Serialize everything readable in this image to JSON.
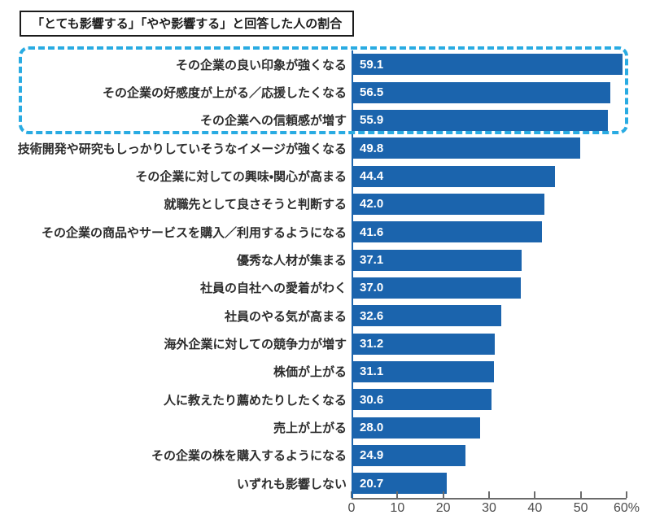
{
  "title_box": {
    "label": "「とても影響する」「やや影響する」と回答した人の割合"
  },
  "chart_data": {
    "type": "bar",
    "orientation": "horizontal",
    "title": "「とても影響する」「やや影響する」と回答した人の割合",
    "categories": [
      "その企業の良い印象が強くなる",
      "その企業の好感度が上がる／応援したくなる",
      "その企業への信頼感が増す",
      "技術開発や研究もしっかりしていそうなイメージが強くなる",
      "その企業に対しての興味・関心が高まる",
      "就職先として良さそうと判断する",
      "その企業の商品やサービスを購入／利用するようになる",
      "優秀な人材が集まる",
      "社員の自社への愛着がわく",
      "社員のやる気が高まる",
      "海外企業に対しての競争力が増す",
      "株価が上がる",
      "人に教えたり薦めたりしたくなる",
      "売上が上がる",
      "その企業の株を購入するようになる",
      "いずれも影響しない"
    ],
    "values": [
      59.1,
      56.5,
      55.9,
      49.8,
      44.4,
      42.0,
      41.6,
      37.1,
      37.0,
      32.6,
      31.2,
      31.1,
      30.6,
      28.0,
      24.9,
      20.7
    ],
    "value_labels": [
      "59.1",
      "56.5",
      "55.9",
      "49.8",
      "44.4",
      "42.0",
      "41.6",
      "37.1",
      "37.0",
      "32.6",
      "31.2",
      "31.1",
      "30.6",
      "28.0",
      "24.9",
      "20.7"
    ],
    "xlim": [
      0,
      60
    ],
    "x_ticks": [
      0,
      10,
      20,
      30,
      40,
      50,
      60
    ],
    "x_tick_labels": [
      "0",
      "10",
      "20",
      "30",
      "40",
      "50",
      "60%"
    ],
    "grid": false,
    "legend": false,
    "highlighted_top_n": 3,
    "colors": {
      "bar": "#1b64ad",
      "highlight_border": "#29abe2",
      "value_text": "#ffffff",
      "label_text": "#2d2d2d",
      "axis_text": "#4d4d4d",
      "axis_line": "#6b6b6b",
      "title_border": "#1b1b1b"
    }
  }
}
